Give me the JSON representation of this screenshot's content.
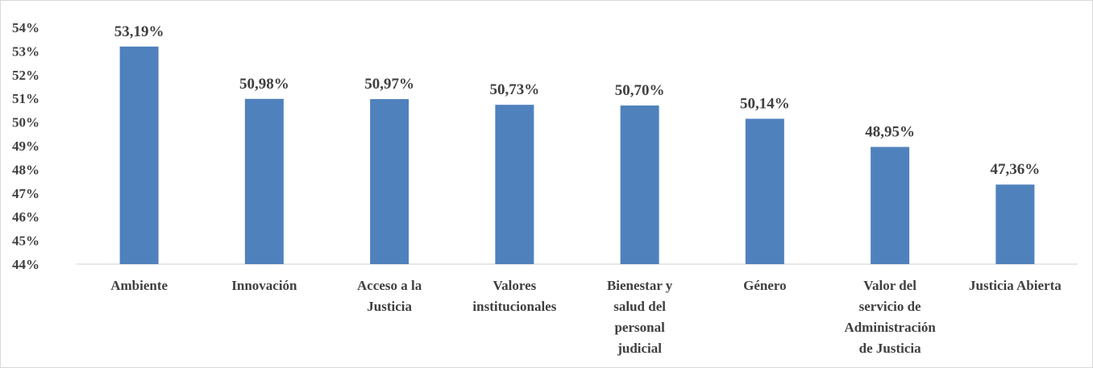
{
  "chart_data": {
    "type": "bar",
    "categories": [
      [
        "Ambiente"
      ],
      [
        "Innovación"
      ],
      [
        "Acceso a la",
        "Justicia"
      ],
      [
        "Valores",
        "institucionales"
      ],
      [
        "Bienestar y",
        "salud del",
        "personal",
        "judicial"
      ],
      [
        "Género"
      ],
      [
        "Valor del",
        "servicio de",
        "Administración",
        "de Justicia"
      ],
      [
        "Justicia Abierta"
      ]
    ],
    "values": [
      53.19,
      50.98,
      50.97,
      50.73,
      50.7,
      50.14,
      48.95,
      47.36
    ],
    "data_labels": [
      "53,19%",
      "50,98%",
      "50,97%",
      "50,73%",
      "50,70%",
      "50,14%",
      "48,95%",
      "47,36%"
    ],
    "yticks": [
      {
        "value": 44,
        "label": "44%"
      },
      {
        "value": 45,
        "label": "45%"
      },
      {
        "value": 46,
        "label": "46%"
      },
      {
        "value": 47,
        "label": "47%"
      },
      {
        "value": 48,
        "label": "48%"
      },
      {
        "value": 49,
        "label": "49%"
      },
      {
        "value": 50,
        "label": "50%"
      },
      {
        "value": 51,
        "label": "51%"
      },
      {
        "value": 52,
        "label": "52%"
      },
      {
        "value": 53,
        "label": "53%"
      },
      {
        "value": 54,
        "label": "54%"
      }
    ],
    "ylim": [
      44,
      54
    ],
    "grid": false,
    "title": "",
    "xlabel": "",
    "ylabel": "",
    "colors": {
      "bar": "#4f81bd",
      "text": "#404040",
      "axis": "#d9d9d9"
    }
  }
}
